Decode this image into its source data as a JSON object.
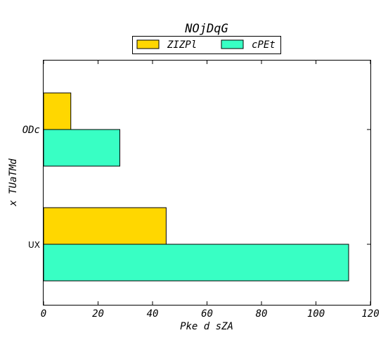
{
  "chart_data": {
    "type": "bar",
    "orientation": "horizontal",
    "title": "NOjDqG",
    "xlabel": "Pke d sZA",
    "ylabel": "x TUaTMd",
    "categories": [
      "ODc",
      "UX"
    ],
    "series": [
      {
        "name": "ZIZPl",
        "color": "#ffd700",
        "values": [
          10,
          45
        ]
      },
      {
        "name": "cPEt",
        "color": "#38ffc4",
        "values": [
          28,
          112
        ]
      }
    ],
    "xlim": [
      0,
      120
    ],
    "xticks": [
      "0",
      "20",
      "40",
      "60",
      "80",
      "100",
      "120"
    ],
    "grid": false,
    "legend_position": "top-center"
  }
}
